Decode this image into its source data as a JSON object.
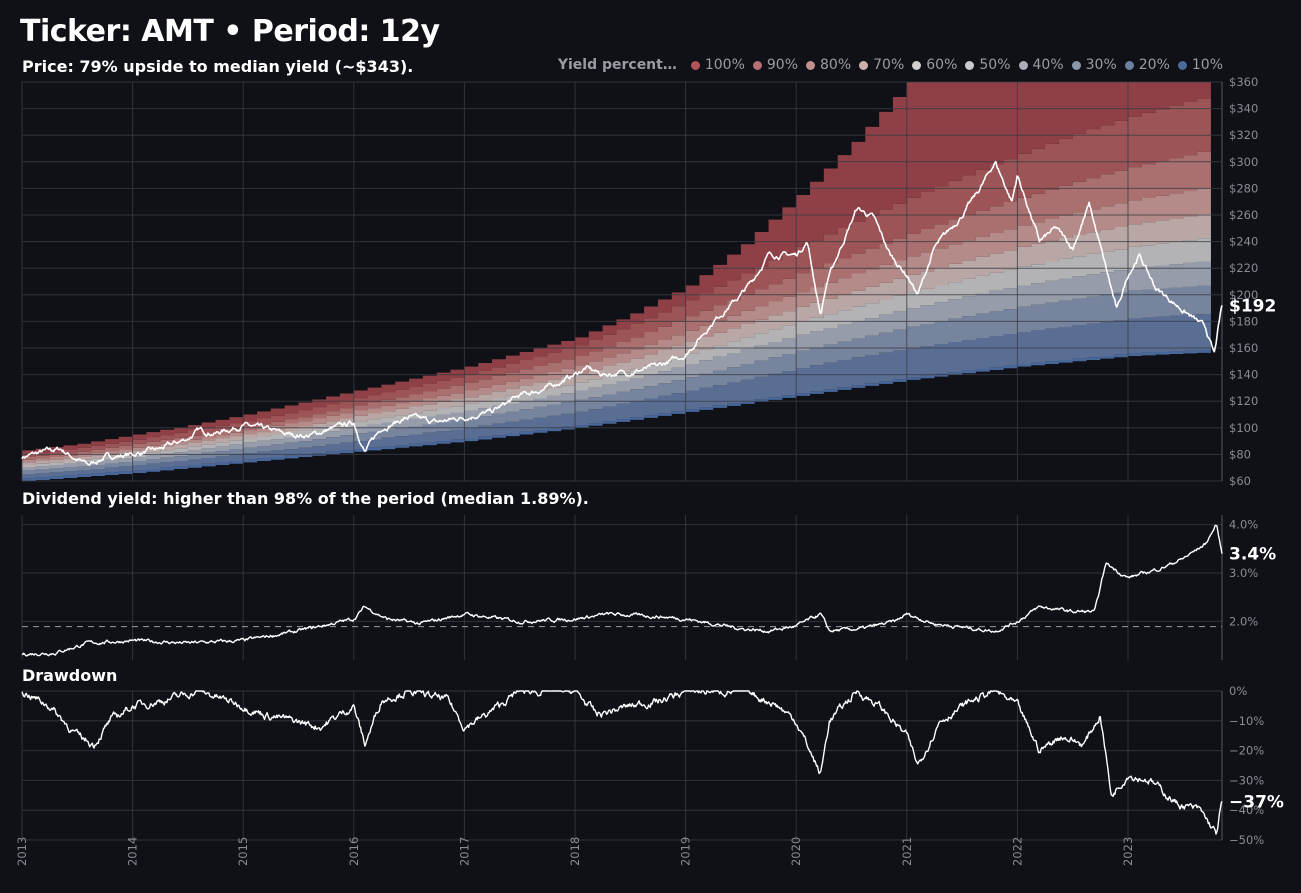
{
  "header": {
    "title": "Ticker: AMT • Period: 12y",
    "price_subtitle": "Price: 79% upside to median yield (~$343).",
    "yield_subtitle": "Dividend yield: higher than 98% of the period (median 1.89%).",
    "drawdown_subtitle": "Drawdown"
  },
  "legend": {
    "title": "Yield percent…",
    "items": [
      {
        "label": "100%",
        "color": "#b4545a"
      },
      {
        "label": "90%",
        "color": "#b86e72"
      },
      {
        "label": "80%",
        "color": "#c4908f"
      },
      {
        "label": "70%",
        "color": "#cdb0ae"
      },
      {
        "label": "60%",
        "color": "#d2cfcf"
      },
      {
        "label": "50%",
        "color": "#c8c9cd"
      },
      {
        "label": "40%",
        "color": "#a9aeb9"
      },
      {
        "label": "30%",
        "color": "#8a97ab"
      },
      {
        "label": "20%",
        "color": "#6b80a1"
      },
      {
        "label": "10%",
        "color": "#4b6a9a"
      }
    ]
  },
  "chart_data": [
    {
      "type": "area",
      "name": "price",
      "ylim": [
        60,
        360
      ],
      "yticks": [
        60,
        80,
        100,
        120,
        140,
        160,
        180,
        200,
        220,
        240,
        260,
        280,
        300,
        320,
        340,
        360
      ],
      "ytick_format": "$",
      "xticks": [
        "2013",
        "2014",
        "2015",
        "2016",
        "2017",
        "2018",
        "2019",
        "2020",
        "2021",
        "2022",
        "2023"
      ],
      "x_range": [
        2013.0,
        2023.85
      ],
      "median_yield_price": 343,
      "last_price_label": "$192",
      "band_colors": [
        "#8f3f46",
        "#9c5457",
        "#a9706f",
        "#b58b89",
        "#b9a7a6",
        "#b3b2b5",
        "#969caa",
        "#77849d",
        "#5a6e94",
        "#48679a"
      ],
      "bands": {
        "x": [
          2013.0,
          2013.5,
          2014.0,
          2014.5,
          2015.0,
          2015.5,
          2016.0,
          2016.5,
          2017.0,
          2017.5,
          2018.0,
          2018.5,
          2019.0,
          2019.5,
          2020.0,
          2020.5,
          2021.0,
          2021.5,
          2022.0,
          2022.5,
          2023.0,
          2023.5,
          2023.85
        ],
        "lower": [
          60,
          63,
          66,
          70,
          74,
          78,
          82,
          86,
          90,
          95,
          100,
          106,
          112,
          118,
          124,
          130,
          136,
          141,
          146,
          150,
          154,
          156,
          157
        ],
        "upper": [
          83,
          88,
          95,
          102,
          110,
          119,
          128,
          137,
          146,
          157,
          168,
          186,
          207,
          238,
          275,
          315,
          360,
          360,
          360,
          360,
          360,
          360,
          360
        ],
        "quantiles": [
          [
            62,
            65,
            68,
            72,
            76,
            80,
            84,
            88,
            92,
            97,
            102,
            108,
            114,
            120,
            126,
            132,
            138,
            143,
            148,
            152,
            156,
            158,
            159
          ],
          [
            65,
            68,
            72,
            76,
            81,
            85,
            90,
            95,
            100,
            106,
            112,
            120,
            128,
            136,
            145,
            153,
            160,
            166,
            172,
            177,
            182,
            185,
            186
          ],
          [
            68,
            71,
            75,
            80,
            85,
            90,
            96,
            101,
            107,
            114,
            121,
            129,
            138,
            148,
            158,
            167,
            176,
            184,
            191,
            197,
            203,
            206,
            208
          ],
          [
            70,
            74,
            78,
            83,
            89,
            94,
            101,
            107,
            113,
            120,
            128,
            137,
            148,
            159,
            170,
            180,
            190,
            199,
            207,
            214,
            220,
            224,
            227
          ],
          [
            72,
            76,
            80,
            86,
            92,
            98,
            105,
            111,
            118,
            126,
            134,
            144,
            156,
            168,
            180,
            191,
            202,
            212,
            221,
            229,
            236,
            241,
            245
          ],
          [
            74,
            78,
            83,
            89,
            95,
            101,
            109,
            116,
            123,
            132,
            141,
            152,
            165,
            178,
            191,
            203,
            215,
            226,
            236,
            245,
            253,
            259,
            264
          ],
          [
            76,
            80,
            85,
            91,
            98,
            105,
            113,
            120,
            128,
            137,
            147,
            159,
            173,
            188,
            202,
            216,
            229,
            241,
            252,
            262,
            271,
            278,
            284
          ],
          [
            78,
            82,
            88,
            94,
            101,
            108,
            117,
            125,
            134,
            144,
            154,
            168,
            184,
            200,
            216,
            231,
            246,
            260,
            273,
            285,
            296,
            305,
            312
          ],
          [
            80,
            85,
            91,
            98,
            105,
            113,
            122,
            131,
            140,
            151,
            162,
            178,
            196,
            216,
            236,
            255,
            273,
            290,
            306,
            321,
            334,
            345,
            352
          ]
        ]
      },
      "series": [
        {
          "name": "price",
          "x": [
            2013.0,
            2013.2,
            2013.35,
            2013.5,
            2013.6,
            2013.75,
            2014.0,
            2014.25,
            2014.5,
            2014.6,
            2014.75,
            2015.0,
            2015.25,
            2015.4,
            2015.6,
            2015.75,
            2016.0,
            2016.1,
            2016.25,
            2016.5,
            2016.75,
            2017.0,
            2017.25,
            2017.5,
            2017.75,
            2018.0,
            2018.1,
            2018.25,
            2018.5,
            2018.75,
            2019.0,
            2019.25,
            2019.5,
            2019.6,
            2019.75,
            2020.0,
            2020.1,
            2020.22,
            2020.28,
            2020.4,
            2020.55,
            2020.7,
            2020.85,
            2021.0,
            2021.1,
            2021.25,
            2021.5,
            2021.65,
            2021.8,
            2021.95,
            2022.0,
            2022.2,
            2022.35,
            2022.5,
            2022.65,
            2022.8,
            2022.9,
            2023.0,
            2023.1,
            2023.25,
            2023.4,
            2023.55,
            2023.7,
            2023.78,
            2023.85
          ],
          "y": [
            78,
            82,
            84,
            76,
            72,
            78,
            80,
            84,
            92,
            98,
            96,
            102,
            98,
            95,
            94,
            98,
            104,
            82,
            100,
            108,
            104,
            108,
            112,
            124,
            130,
            140,
            145,
            140,
            142,
            146,
            155,
            180,
            200,
            210,
            230,
            230,
            240,
            185,
            210,
            235,
            265,
            258,
            230,
            215,
            200,
            235,
            260,
            278,
            300,
            270,
            290,
            240,
            250,
            235,
            268,
            220,
            188,
            215,
            230,
            205,
            195,
            185,
            175,
            155,
            192
          ]
        }
      ]
    },
    {
      "type": "line",
      "name": "dividend_yield",
      "ylim": [
        1.2,
        4.2
      ],
      "yticks": [
        2.0,
        3.0,
        4.0
      ],
      "ytick_labels": [
        "2.0%",
        "3.0%",
        "4.0%"
      ],
      "median": 1.89,
      "last_label": "3.4%",
      "series": [
        {
          "name": "yield",
          "x": [
            2013.0,
            2013.3,
            2013.6,
            2014.0,
            2014.5,
            2015.0,
            2015.5,
            2016.0,
            2016.1,
            2016.3,
            2016.6,
            2017.0,
            2017.5,
            2018.0,
            2018.3,
            2018.75,
            2019.0,
            2019.5,
            2019.75,
            2020.0,
            2020.22,
            2020.3,
            2020.6,
            2020.9,
            2021.0,
            2021.25,
            2021.6,
            2021.8,
            2022.0,
            2022.2,
            2022.5,
            2022.7,
            2022.8,
            2023.0,
            2023.3,
            2023.5,
            2023.7,
            2023.8,
            2023.85
          ],
          "y": [
            1.32,
            1.35,
            1.55,
            1.6,
            1.55,
            1.6,
            1.8,
            2.05,
            2.3,
            2.05,
            1.95,
            2.15,
            2.0,
            2.05,
            2.15,
            2.1,
            2.05,
            1.85,
            1.8,
            1.9,
            2.15,
            1.8,
            1.85,
            2.0,
            2.15,
            1.95,
            1.85,
            1.8,
            2.0,
            2.3,
            2.2,
            2.2,
            3.2,
            2.9,
            3.1,
            3.3,
            3.6,
            4.0,
            3.4
          ]
        }
      ]
    },
    {
      "type": "line",
      "name": "drawdown",
      "ylim": [
        -50,
        0
      ],
      "yticks": [
        0,
        -10,
        -20,
        -30,
        -40,
        -50
      ],
      "ytick_labels": [
        "0%",
        "−10%",
        "−20%",
        "−30%",
        "−40%",
        "−50%"
      ],
      "last_label": "−37%",
      "series": [
        {
          "name": "drawdown",
          "x": [
            2013.0,
            2013.25,
            2013.5,
            2013.65,
            2013.8,
            2014.0,
            2014.3,
            2014.6,
            2015.0,
            2015.2,
            2015.45,
            2015.7,
            2016.0,
            2016.1,
            2016.25,
            2016.5,
            2016.85,
            2017.0,
            2017.2,
            2017.5,
            2018.0,
            2018.2,
            2018.5,
            2018.8,
            2019.0,
            2019.5,
            2019.8,
            2020.0,
            2020.22,
            2020.3,
            2020.55,
            2020.75,
            2021.0,
            2021.1,
            2021.3,
            2021.6,
            2021.8,
            2022.0,
            2022.2,
            2022.4,
            2022.6,
            2022.75,
            2022.85,
            2023.0,
            2023.2,
            2023.45,
            2023.65,
            2023.8,
            2023.85
          ],
          "y": [
            0,
            -5,
            -15,
            -18,
            -10,
            -5,
            -3,
            0,
            -5,
            -8,
            -10,
            -12,
            -5,
            -18,
            -3,
            0,
            -3,
            -12,
            -8,
            0,
            0,
            -8,
            -5,
            -3,
            0,
            0,
            -4,
            -10,
            -28,
            -10,
            0,
            -5,
            -15,
            -25,
            -10,
            -3,
            0,
            -5,
            -20,
            -15,
            -18,
            -8,
            -35,
            -28,
            -30,
            -38,
            -40,
            -48,
            -37
          ]
        }
      ]
    }
  ]
}
